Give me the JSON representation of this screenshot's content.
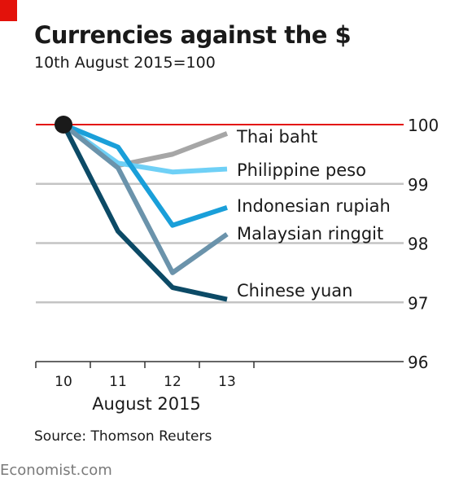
{
  "header": {
    "title": "Currencies against the $",
    "subtitle": "10th August 2015=100"
  },
  "source": "Source: Thomson Reuters",
  "footer": "Economist.com",
  "chart_data": {
    "type": "line",
    "title": "Currencies against the $",
    "subtitle": "10th August 2015=100",
    "xlabel": "August 2015",
    "ylabel": "",
    "x": [
      10,
      11,
      12,
      13
    ],
    "xticks": [
      "10",
      "11",
      "12",
      "13"
    ],
    "xlim": [
      10,
      14
    ],
    "ylim": [
      96,
      100
    ],
    "yticks": [
      96,
      97,
      98,
      99,
      100
    ],
    "ytick_labels": [
      "96",
      "97",
      "98",
      "99",
      "100"
    ],
    "y_axis_side": "right",
    "grid": true,
    "legend": "direct labels at line ends",
    "baseline": 100,
    "start_marker": {
      "x": 10,
      "y": 100
    },
    "series": [
      {
        "name": "Thai baht",
        "values": [
          100,
          99.31,
          99.5,
          99.85
        ],
        "color": "#a6a6a6"
      },
      {
        "name": "Philippine peso",
        "values": [
          100,
          99.35,
          99.2,
          99.25
        ],
        "color": "#6fd0f6"
      },
      {
        "name": "Indonesian rupiah",
        "values": [
          100,
          99.62,
          98.3,
          98.6
        ],
        "color": "#1a9fd9"
      },
      {
        "name": "Malaysian ringgit",
        "values": [
          100,
          99.27,
          97.5,
          98.15
        ],
        "color": "#6b93ab"
      },
      {
        "name": "Chinese yuan",
        "values": [
          100,
          98.2,
          97.25,
          97.05
        ],
        "color": "#0c4a66"
      }
    ],
    "colors": {
      "baseline": "#e3120b",
      "gridline": "#c4c4c4",
      "axis": "#333333",
      "marker": "#1a1a1a"
    }
  }
}
